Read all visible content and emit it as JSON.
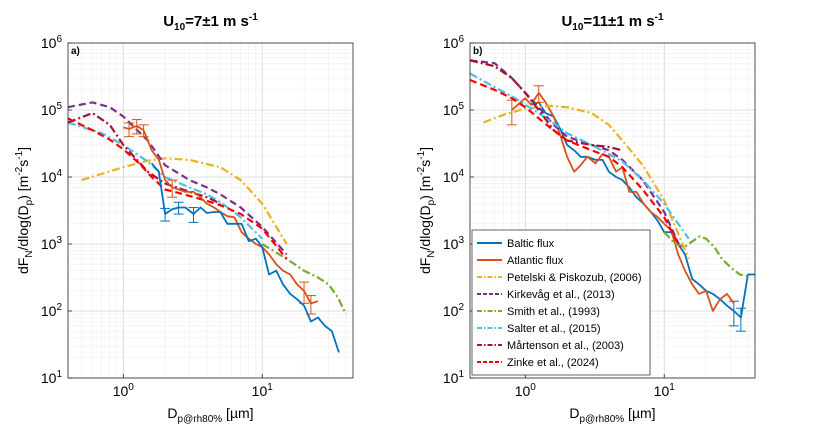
{
  "figure": {
    "y_label_main": "dF",
    "y_label_sub": "N",
    "y_label_mid": "/dlog(D",
    "y_label_sub2": "p",
    "y_label_unit": ") [m",
    "y_label_unit_sup1": "-2",
    "y_label_unit_mid": "s",
    "y_label_unit_sup2": "-1",
    "y_label_close": "]",
    "x_label_main": "D",
    "x_label_sub": "p@rh80%",
    "x_label_unit": " [µm]"
  },
  "chart_data": [
    {
      "type": "line",
      "title": "U10=7±1 m s-1",
      "title_parts": {
        "base": "U",
        "sub": "10",
        "rest": "=7±1 m s",
        "sup": "-1"
      },
      "panel_label": "a)",
      "xscale": "log",
      "yscale": "log",
      "xlim": [
        0.4,
        45
      ],
      "ylim": [
        10,
        1000000
      ],
      "x_ticks": [
        {
          "value": 1,
          "base": "10",
          "exp": "0"
        },
        {
          "value": 10,
          "base": "10",
          "exp": "1"
        }
      ],
      "y_ticks": [
        {
          "value": 10,
          "base": "10",
          "exp": "1"
        },
        {
          "value": 100,
          "base": "10",
          "exp": "2"
        },
        {
          "value": 1000,
          "base": "10",
          "exp": "3"
        },
        {
          "value": 10000,
          "base": "10",
          "exp": "4"
        },
        {
          "value": 100000,
          "base": "10",
          "exp": "5"
        },
        {
          "value": 1000000,
          "base": "10",
          "exp": "6"
        }
      ],
      "grid": true,
      "series": [
        {
          "name": "Petelski & Piskozub, (2006)",
          "color": "#EDB120",
          "style": "dashdot",
          "x": [
            0.5,
            1,
            1.5,
            2,
            3,
            5,
            7,
            10,
            15
          ],
          "y": [
            9000,
            14000,
            17500,
            19000,
            18000,
            14000,
            9000,
            4000,
            1000
          ]
        },
        {
          "name": "Kirkevåg et al., (2013)",
          "color": "#7E2F8E",
          "style": "dashed",
          "x": [
            0.4,
            0.6,
            0.8,
            1,
            1.5,
            2,
            3,
            4,
            5,
            7,
            10,
            15
          ],
          "y": [
            110000,
            130000,
            110000,
            80000,
            35000,
            15000,
            9000,
            7000,
            5500,
            3500,
            1800,
            700
          ]
        },
        {
          "name": "Smith et al., (1993)",
          "color": "#77AC30",
          "style": "dashdot",
          "x": [
            10,
            15,
            20,
            25,
            30,
            35,
            40
          ],
          "y": [
            1000,
            600,
            400,
            320,
            250,
            160,
            90
          ]
        },
        {
          "name": "Salter et al., (2015)",
          "color": "#4DBEEE",
          "style": "dashdot",
          "x": [
            0.4,
            0.7,
            1,
            1.5,
            2,
            3,
            4,
            5,
            7,
            10
          ],
          "y": [
            65000,
            45000,
            30000,
            17000,
            10000,
            7000,
            5500,
            4200,
            2500,
            1200
          ]
        },
        {
          "name": "Mårtenson et al., (2003)",
          "color": "#A2142F",
          "style": "dashdot",
          "x": [
            0.4,
            0.6,
            0.8,
            1,
            1.5,
            2,
            3,
            4,
            5
          ],
          "y": [
            65000,
            90000,
            60000,
            30000,
            12000,
            8000,
            6000,
            5000,
            4000
          ]
        },
        {
          "name": "Zinke et al., (2024)",
          "color": "#FF0000",
          "style": "dashed",
          "x": [
            0.4,
            0.6,
            0.8,
            1,
            1.3,
            1.6,
            2,
            2.5,
            3,
            4,
            5,
            7,
            10,
            15
          ],
          "y": [
            75000,
            50000,
            36000,
            26000,
            16000,
            10000,
            6500,
            5800,
            5200,
            4400,
            3800,
            2800,
            1700,
            600
          ]
        },
        {
          "name": "Atlantic flux",
          "color": "#D95319",
          "style": "solid",
          "x": [
            1.0,
            1.1,
            1.25,
            1.4,
            1.6,
            1.8,
            2.0,
            2.25,
            2.5,
            2.8,
            3.2,
            3.6,
            4.0,
            4.5,
            5.0,
            5.6,
            6.3,
            7.1,
            8,
            9,
            10,
            11.2,
            12.6,
            14.1,
            15.9,
            17.8,
            20,
            22.4,
            25.2
          ],
          "y": [
            55000,
            52000,
            58000,
            50000,
            25000,
            18000,
            9000,
            7000,
            6500,
            6000,
            6000,
            5000,
            4000,
            3500,
            3000,
            2600,
            2500,
            1500,
            1200,
            1000,
            900,
            700,
            500,
            400,
            350,
            250,
            200,
            130,
            140
          ],
          "err": [
            0,
            12000,
            14000,
            10000,
            0,
            0,
            0,
            2000,
            0,
            0,
            0,
            0,
            0,
            0,
            0,
            0,
            0,
            0,
            0,
            0,
            0,
            0,
            0,
            0,
            0,
            0,
            70,
            40,
            0
          ]
        },
        {
          "name": "Baltic flux",
          "color": "#0072BD",
          "style": "solid",
          "x": [
            1.6,
            1.8,
            2.0,
            2.25,
            2.5,
            2.8,
            3.2,
            3.6,
            4.0,
            4.5,
            5.0,
            5.6,
            6.3,
            7.1,
            8,
            9,
            10,
            11.2,
            12.6,
            14.1,
            15.9,
            17.8,
            20,
            22.4,
            25.2,
            28.3,
            31.7,
            35.6
          ],
          "y": [
            16000,
            12000,
            2800,
            3300,
            3500,
            3500,
            2800,
            3500,
            2900,
            3000,
            3000,
            2000,
            2000,
            2000,
            1100,
            1200,
            900,
            350,
            400,
            250,
            180,
            150,
            120,
            70,
            80,
            60,
            50,
            24
          ],
          "err": [
            0,
            0,
            600,
            0,
            700,
            0,
            700,
            0,
            0,
            0,
            0,
            0,
            0,
            0,
            0,
            0,
            0,
            0,
            0,
            0,
            0,
            0,
            0,
            0,
            0,
            0,
            0,
            0
          ]
        }
      ]
    },
    {
      "type": "line",
      "title": "U10=11±1 m s-1",
      "title_parts": {
        "base": "U",
        "sub": "10",
        "rest": "=11±1 m s",
        "sup": "-1"
      },
      "panel_label": "b)",
      "xscale": "log",
      "yscale": "log",
      "xlim": [
        0.4,
        45
      ],
      "ylim": [
        10,
        1000000
      ],
      "x_ticks": [
        {
          "value": 1,
          "base": "10",
          "exp": "0"
        },
        {
          "value": 10,
          "base": "10",
          "exp": "1"
        }
      ],
      "y_ticks": [
        {
          "value": 10,
          "base": "10",
          "exp": "1"
        },
        {
          "value": 100,
          "base": "10",
          "exp": "2"
        },
        {
          "value": 1000,
          "base": "10",
          "exp": "3"
        },
        {
          "value": 10000,
          "base": "10",
          "exp": "4"
        },
        {
          "value": 100000,
          "base": "10",
          "exp": "5"
        },
        {
          "value": 1000000,
          "base": "10",
          "exp": "6"
        }
      ],
      "grid": true,
      "legend": {
        "placement": "bottom-left"
      },
      "series": [
        {
          "name": "Baltic flux",
          "color": "#0072BD",
          "style": "solid",
          "x": [
            1.1,
            1.25,
            1.4,
            1.6,
            1.8,
            2.0,
            2.25,
            2.5,
            2.8,
            3.2,
            3.6,
            4.0,
            4.5,
            5.0,
            5.6,
            6.3,
            7.1,
            8,
            9,
            10,
            11.2,
            12.6,
            14.1,
            15.9,
            17.8,
            20,
            22.4,
            25.2,
            28.3,
            31.7,
            35.6,
            40,
            45
          ],
          "y": [
            120000,
            130000,
            90000,
            80000,
            50000,
            30000,
            25000,
            20000,
            20000,
            18000,
            18000,
            12000,
            10000,
            9000,
            7000,
            5000,
            4000,
            3000,
            2200,
            1500,
            1500,
            1000,
            700,
            300,
            250,
            200,
            180,
            150,
            120,
            100,
            80,
            350,
            350
          ],
          "err": [
            0,
            0,
            0,
            0,
            0,
            0,
            0,
            0,
            0,
            0,
            0,
            0,
            0,
            0,
            0,
            0,
            0,
            0,
            0,
            0,
            0,
            0,
            0,
            0,
            0,
            0,
            0,
            0,
            0,
            40,
            30,
            0,
            0
          ]
        },
        {
          "name": "Atlantic flux",
          "color": "#D95319",
          "style": "solid",
          "x": [
            0.8,
            1.0,
            1.1,
            1.25,
            1.4,
            1.6,
            1.8,
            2.0,
            2.25,
            2.5,
            2.8,
            3.2,
            3.6,
            4.0,
            4.5,
            5.0,
            5.6,
            6.3,
            7.1,
            8,
            9,
            10,
            11.2,
            12.6,
            14.1,
            15.9,
            17.8,
            20,
            22.4,
            25.2,
            28.3,
            31.7
          ],
          "y": [
            100000,
            150000,
            120000,
            180000,
            130000,
            80000,
            40000,
            20000,
            12000,
            15000,
            20000,
            16000,
            22000,
            20000,
            12000,
            14000,
            6000,
            6000,
            4000,
            3000,
            2500,
            2000,
            1600,
            700,
            400,
            250,
            180,
            200,
            100,
            150,
            180,
            130
          ],
          "err": [
            40000,
            0,
            0,
            50000,
            0,
            0,
            0,
            0,
            0,
            0,
            0,
            0,
            0,
            0,
            0,
            0,
            0,
            0,
            0,
            0,
            0,
            0,
            0,
            0,
            0,
            0,
            0,
            0,
            0,
            0,
            0,
            0
          ]
        },
        {
          "name": "Petelski & Piskozub, (2006)",
          "color": "#EDB120",
          "style": "dashdot",
          "x": [
            0.5,
            0.7,
            1,
            1.5,
            2,
            3,
            4,
            5,
            7,
            10,
            15
          ],
          "y": [
            65000,
            85000,
            105000,
            115000,
            110000,
            90000,
            60000,
            35000,
            15000,
            4500,
            600
          ]
        },
        {
          "name": "Kirkevåg et al., (2013)",
          "color": "#7E2F8E",
          "style": "dashed",
          "x": [
            0.4,
            0.6,
            0.8,
            1,
            1.3,
            1.6,
            2,
            3,
            4,
            5,
            7,
            10,
            13
          ],
          "y": [
            550000,
            500000,
            300000,
            180000,
            100000,
            60000,
            40000,
            30000,
            25000,
            18000,
            9000,
            3000,
            900
          ]
        },
        {
          "name": "Smith et al., (1993)",
          "color": "#77AC30",
          "style": "dashdot",
          "x": [
            10,
            12,
            14,
            16,
            18,
            20,
            23,
            26,
            30,
            35,
            40
          ],
          "y": [
            1500,
            1000,
            900,
            1100,
            1300,
            1200,
            900,
            600,
            450,
            350,
            330
          ]
        },
        {
          "name": "Salter et al., (2015)",
          "color": "#4DBEEE",
          "style": "dashdot",
          "x": [
            0.4,
            0.6,
            0.8,
            1,
            1.5,
            2,
            3,
            4,
            5,
            7,
            10,
            15
          ],
          "y": [
            350000,
            220000,
            160000,
            120000,
            70000,
            45000,
            30000,
            22000,
            17000,
            9000,
            4000,
            1200
          ]
        },
        {
          "name": "Mårtenson et al., (2003)",
          "color": "#A2142F",
          "style": "dashdot",
          "x": [
            0.4,
            0.6,
            0.8,
            1,
            1.3,
            1.6,
            2,
            3,
            4,
            5
          ],
          "y": [
            550000,
            450000,
            300000,
            180000,
            90000,
            50000,
            35000,
            30000,
            28000,
            25000
          ]
        },
        {
          "name": "Zinke et al., (2024)",
          "color": "#FF0000",
          "style": "dashed",
          "x": [
            0.4,
            0.6,
            0.8,
            1,
            1.5,
            2,
            3,
            4,
            5,
            7,
            10,
            13
          ],
          "y": [
            280000,
            200000,
            150000,
            110000,
            55000,
            35000,
            25000,
            20000,
            14000,
            6500,
            2500,
            900
          ]
        }
      ]
    }
  ],
  "legend_order": [
    "Baltic flux",
    "Atlantic flux",
    "Petelski & Piskozub, (2006)",
    "Kirkevåg et al., (2013)",
    "Smith et al., (1993)",
    "Salter et al., (2015)",
    "Mårtenson et al., (2003)",
    "Zinke et al., (2024)"
  ]
}
